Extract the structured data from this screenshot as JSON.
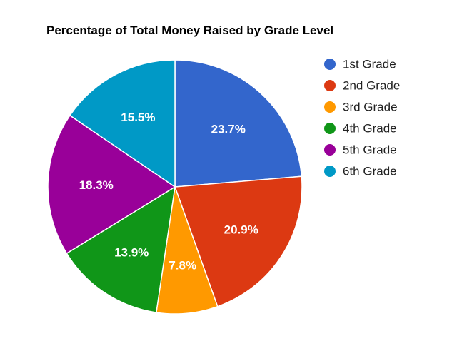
{
  "chart_data": {
    "type": "pie",
    "title": "Percentage of Total Money Raised by Grade Level",
    "categories": [
      "1st Grade",
      "2nd Grade",
      "3rd Grade",
      "4th Grade",
      "5th Grade",
      "6th Grade"
    ],
    "values": [
      23.7,
      20.9,
      7.8,
      13.9,
      18.3,
      15.5
    ],
    "labels": [
      "23.7%",
      "20.9%",
      "7.8%",
      "13.9%",
      "18.3%",
      "15.5%"
    ],
    "colors": [
      "#3366cc",
      "#dc3912",
      "#ff9900",
      "#109618",
      "#990099",
      "#0099c6"
    ],
    "legend_position": "right",
    "start_angle": "12 o'clock, clockwise"
  }
}
